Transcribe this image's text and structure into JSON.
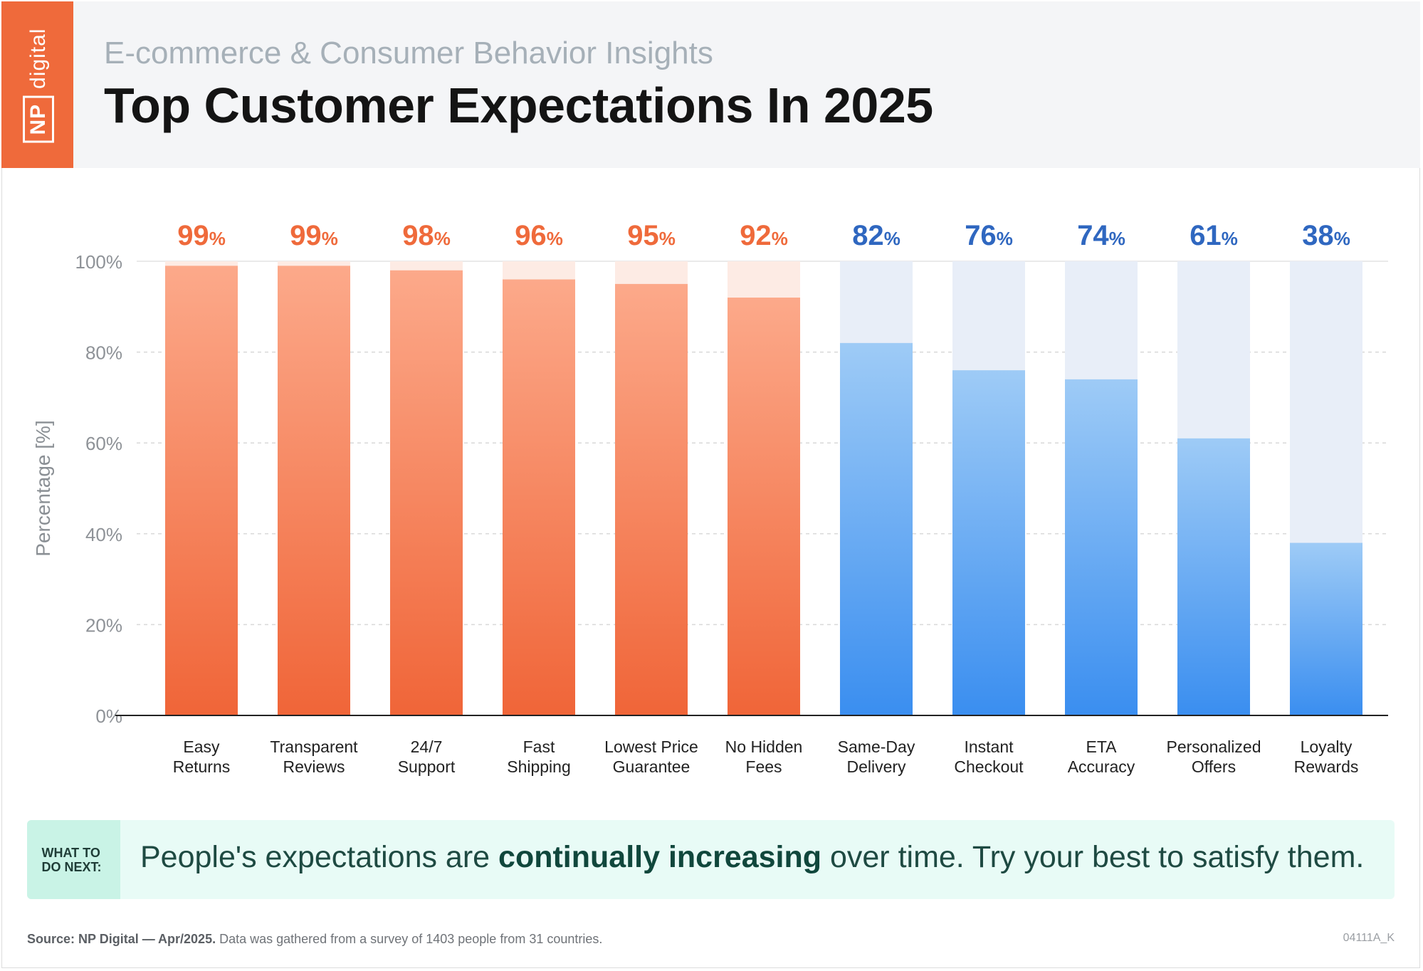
{
  "header": {
    "logo_np": "NP",
    "logo_digital": "digital",
    "subtitle": "E-commerce & Consumer Behavior Insights",
    "title": "Top Customer Expectations In 2025"
  },
  "colors": {
    "orange_top": "#fca98a",
    "orange_bottom": "#f06538",
    "orange_track": "#fdebe4",
    "orange_label": "#ef6a3b",
    "blue_top": "#9ecbf6",
    "blue_bottom": "#3a8ef0",
    "blue_track": "#e8eef8",
    "blue_label": "#2f67c0"
  },
  "chart_data": {
    "type": "bar",
    "title": "Top Customer Expectations In 2025",
    "xlabel": "",
    "ylabel": "Percentage [%]",
    "ylim": [
      0,
      100
    ],
    "yticks": [
      0,
      20,
      40,
      60,
      80,
      100
    ],
    "ytick_labels": [
      "0%",
      "20%",
      "40%",
      "60%",
      "80%",
      "100%"
    ],
    "grid": true,
    "categories": [
      [
        "Easy",
        "Returns"
      ],
      [
        "Transparent",
        "Reviews"
      ],
      [
        "24/7",
        "Support"
      ],
      [
        "Fast",
        "Shipping"
      ],
      [
        "Lowest Price",
        "Guarantee"
      ],
      [
        "No Hidden",
        "Fees"
      ],
      [
        "Same-Day",
        "Delivery"
      ],
      [
        "Instant",
        "Checkout"
      ],
      [
        "ETA",
        "Accuracy"
      ],
      [
        "Personalized",
        "Offers"
      ],
      [
        "Loyalty",
        "Rewards"
      ]
    ],
    "values": [
      99,
      99,
      98,
      96,
      95,
      92,
      82,
      76,
      74,
      61,
      38
    ],
    "groups": [
      "orange",
      "orange",
      "orange",
      "orange",
      "orange",
      "orange",
      "blue",
      "blue",
      "blue",
      "blue",
      "blue"
    ],
    "value_suffix": "%"
  },
  "banner": {
    "tag": "What to do next:",
    "msg_before": "People's expectations are ",
    "msg_bold": "continually increasing",
    "msg_after": " over time. Try your best to satisfy them."
  },
  "footer": {
    "source_bold": "Source: NP Digital — Apr/2025.",
    "source_rest": " Data was gathered from a survey of 1403 people from 31 countries.",
    "code": "04111A_K"
  }
}
